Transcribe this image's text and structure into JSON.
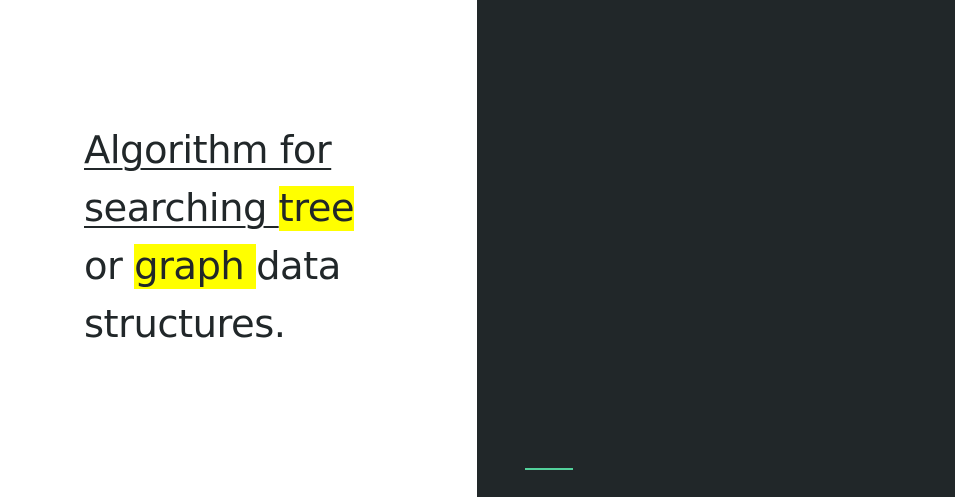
{
  "slide": {
    "text_runs": [
      {
        "text": "Algorithm for",
        "style": "underline"
      },
      {
        "text": "searching ",
        "style": "underline"
      },
      {
        "text": "tree",
        "style": "highlight"
      },
      {
        "text": "or ",
        "style": "plain"
      },
      {
        "text": "graph ",
        "style": "highlight"
      },
      {
        "text": "data",
        "style": "plain"
      },
      {
        "text": "structures.",
        "style": "plain"
      }
    ]
  },
  "colors": {
    "left_background": "#ffffff",
    "right_background": "#212729",
    "text": "#212729",
    "highlight": "#ffff00",
    "accent": "#53d19b"
  }
}
